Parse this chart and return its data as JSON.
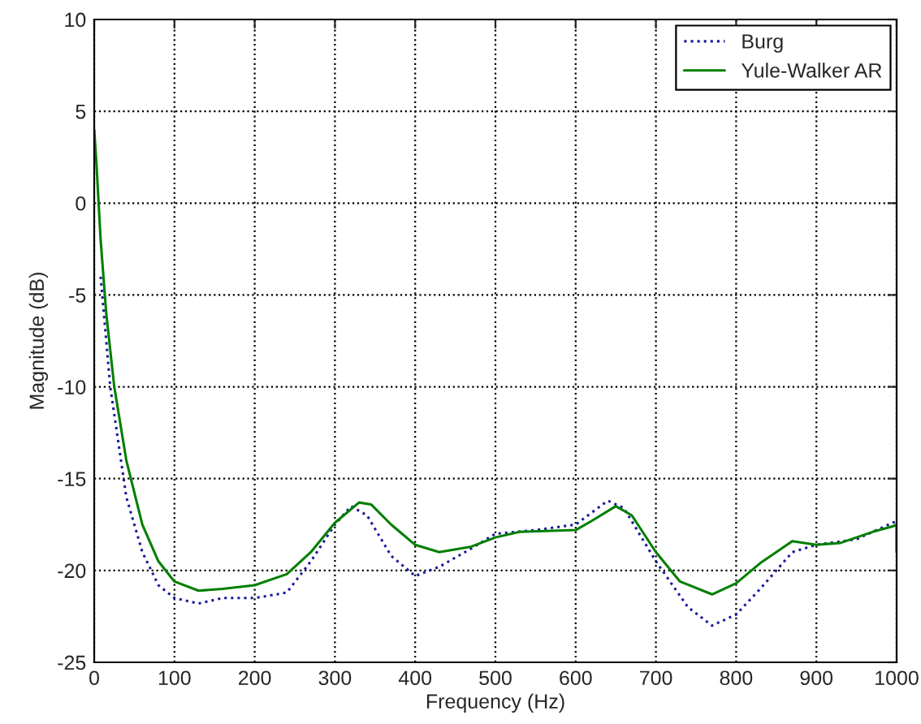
{
  "chart_data": {
    "type": "line",
    "xlabel": "Frequency (Hz)",
    "ylabel": "Magnitude (dB)",
    "xlim": [
      0,
      1000
    ],
    "ylim": [
      -25,
      10
    ],
    "xticks": [
      0,
      100,
      200,
      300,
      400,
      500,
      600,
      700,
      800,
      900,
      1000
    ],
    "yticks": [
      -25,
      -20,
      -15,
      -10,
      -5,
      0,
      5,
      10
    ],
    "grid": true,
    "legend": "top right",
    "series": [
      {
        "name": "Burg",
        "color": "#1a1a99",
        "line_style": "dotted",
        "x": [
          8,
          20,
          40,
          60,
          80,
          100,
          130,
          160,
          200,
          240,
          270,
          300,
          320,
          340,
          370,
          400,
          430,
          470,
          500,
          550,
          600,
          640,
          660,
          700,
          740,
          770,
          800,
          830,
          870,
          900,
          950,
          1000
        ],
        "values": [
          -4,
          -10,
          -16,
          -19,
          -20.8,
          -21.5,
          -21.8,
          -21.5,
          -21.5,
          -21.2,
          -19.5,
          -17.5,
          -16.5,
          -17,
          -19.2,
          -20.3,
          -19.8,
          -18.8,
          -18,
          -17.8,
          -17.5,
          -16.2,
          -16.6,
          -19.5,
          -22,
          -23,
          -22.4,
          -21,
          -19,
          -18.6,
          -18.3,
          -17.3
        ]
      },
      {
        "name": "Yule-Walker AR",
        "color": "#007f00",
        "line_style": "solid",
        "x": [
          0,
          3,
          8,
          15,
          25,
          40,
          60,
          80,
          100,
          130,
          160,
          200,
          240,
          270,
          300,
          330,
          345,
          370,
          400,
          430,
          470,
          500,
          530,
          600,
          620,
          650,
          670,
          700,
          730,
          770,
          800,
          830,
          870,
          900,
          930,
          970,
          995,
          1000,
          1000
        ],
        "values": [
          4,
          2,
          -2,
          -6,
          -10,
          -14,
          -17.5,
          -19.5,
          -20.6,
          -21.1,
          -21,
          -20.8,
          -20.2,
          -19,
          -17.4,
          -16.3,
          -16.4,
          -17.5,
          -18.6,
          -19,
          -18.7,
          -18.2,
          -17.9,
          -17.8,
          -17.3,
          -16.5,
          -17,
          -19,
          -20.6,
          -21.3,
          -20.7,
          -19.6,
          -18.4,
          -18.6,
          -18.5,
          -17.9,
          -17.6,
          -17.5,
          -19
        ]
      }
    ]
  }
}
